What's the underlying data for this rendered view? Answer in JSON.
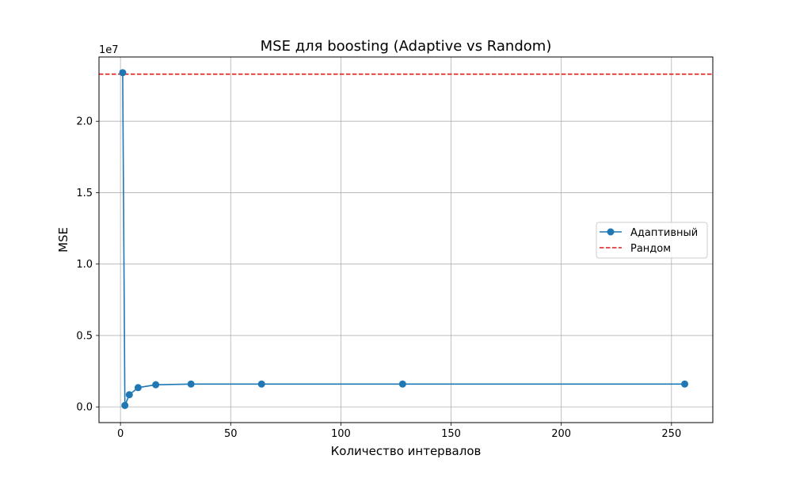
{
  "chart_data": {
    "type": "line",
    "title": "MSE для boosting (Adaptive vs Random)",
    "xlabel": "Количество интервалов",
    "ylabel": "MSE",
    "y_offset_label": "1e7",
    "xlim": [
      -9.75,
      268.75
    ],
    "ylim": [
      -1100000,
      24500000
    ],
    "x_ticks": [
      0,
      50,
      100,
      150,
      200,
      250
    ],
    "x_tick_labels": [
      "0",
      "50",
      "100",
      "150",
      "200",
      "250"
    ],
    "y_ticks": [
      0,
      5000000,
      10000000,
      15000000,
      20000000
    ],
    "y_tick_labels": [
      "0.0",
      "0.5",
      "1.0",
      "1.5",
      "2.0"
    ],
    "grid": true,
    "legend_position": "center-right",
    "series": [
      {
        "name": "Адаптивный",
        "style": "solid-line-circle-markers",
        "color": "#1f77b4",
        "x": [
          1,
          2,
          4,
          8,
          16,
          32,
          64,
          128,
          256
        ],
        "y": [
          23400000,
          100000,
          850000,
          1350000,
          1550000,
          1600000,
          1600000,
          1600000,
          1600000
        ]
      },
      {
        "name": "Рандом",
        "style": "dashed-horizontal-line",
        "color": "#e41a1c",
        "y": 23300000
      }
    ]
  }
}
